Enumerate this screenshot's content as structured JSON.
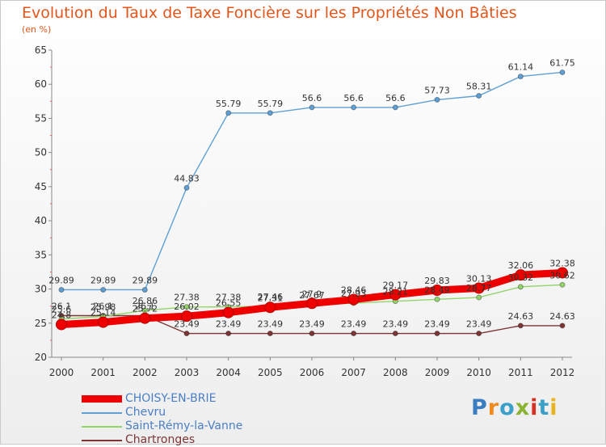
{
  "title": "Evolution du Taux de Taxe Foncière sur les Propriétés Non Bâties",
  "unit_label": "(en %)",
  "logo": {
    "text": "Proxiti",
    "colors": [
      "#3a7cc2",
      "#f08a1c",
      "#3aa0c9",
      "#8ab431",
      "#d62f26",
      "#3aa0c9",
      "#e8b41d"
    ]
  },
  "chart_data": {
    "type": "line",
    "title": "Evolution du Taux de Taxe Foncière sur les Propriétés Non Bâties",
    "ylabel": "(en %)",
    "xlabel": "",
    "ylim": [
      20,
      65
    ],
    "yticks": [
      "20",
      "25",
      "30",
      "35",
      "40",
      "45",
      "50",
      "55",
      "60",
      "65"
    ],
    "categories": [
      "2000",
      "2001",
      "2002",
      "2003",
      "2004",
      "2005",
      "2006",
      "2007",
      "2008",
      "2009",
      "2010",
      "2011",
      "2012"
    ],
    "grid": false,
    "series": [
      {
        "name": "CHOISY-EN-BRIE",
        "color": "#ee0000",
        "values": [
          24.8,
          25.14,
          25.72,
          26.02,
          26.55,
          27.31,
          27.9,
          28.46,
          29.17,
          29.83,
          30.13,
          32.06,
          32.38
        ],
        "labels": [
          "24.8",
          "25.14",
          "25.72",
          "26.02",
          "26.55",
          "27.31",
          "27.9",
          "28.46",
          "29.17",
          "29.83",
          "30.13",
          "32.06",
          "32.38"
        ]
      },
      {
        "name": "Chevru",
        "color": "#5ea0d5",
        "values": [
          29.89,
          29.89,
          29.89,
          44.83,
          55.79,
          55.79,
          56.6,
          56.6,
          56.6,
          57.73,
          58.31,
          61.14,
          61.75
        ],
        "labels": [
          "29.89",
          "29.89",
          "29.89",
          "44.83",
          "55.79",
          "55.79",
          "56.6",
          "56.6",
          "56.6",
          "57.73",
          "58.31",
          "61.14",
          "61.75"
        ]
      },
      {
        "name": "Saint-Rémy-la-Vanne",
        "color": "#93d46b",
        "values": [
          25.6,
          25.98,
          26.86,
          27.38,
          27.38,
          27.46,
          27.67,
          27.93,
          28.21,
          28.49,
          28.77,
          30.32,
          30.62
        ],
        "labels": [
          "25.6",
          "25.98",
          "26.86",
          "27.38",
          "27.38",
          "27.46",
          "27.67",
          "27.93",
          "28.21",
          "28.49",
          "28.77",
          "30.32",
          "30.62"
        ]
      },
      {
        "name": "Chartronges",
        "color": "#7d3535",
        "values": [
          26.1,
          26.1,
          26.1,
          23.49,
          23.49,
          23.49,
          23.49,
          23.49,
          23.49,
          23.49,
          23.49,
          24.63,
          24.63
        ],
        "labels": [
          "26.1",
          "26.1",
          "26.1",
          "23.49",
          "23.49",
          "23.49",
          "23.49",
          "23.49",
          "23.49",
          "23.49",
          "23.49",
          "24.63",
          "24.63"
        ]
      }
    ],
    "legend": "bottom-left"
  }
}
